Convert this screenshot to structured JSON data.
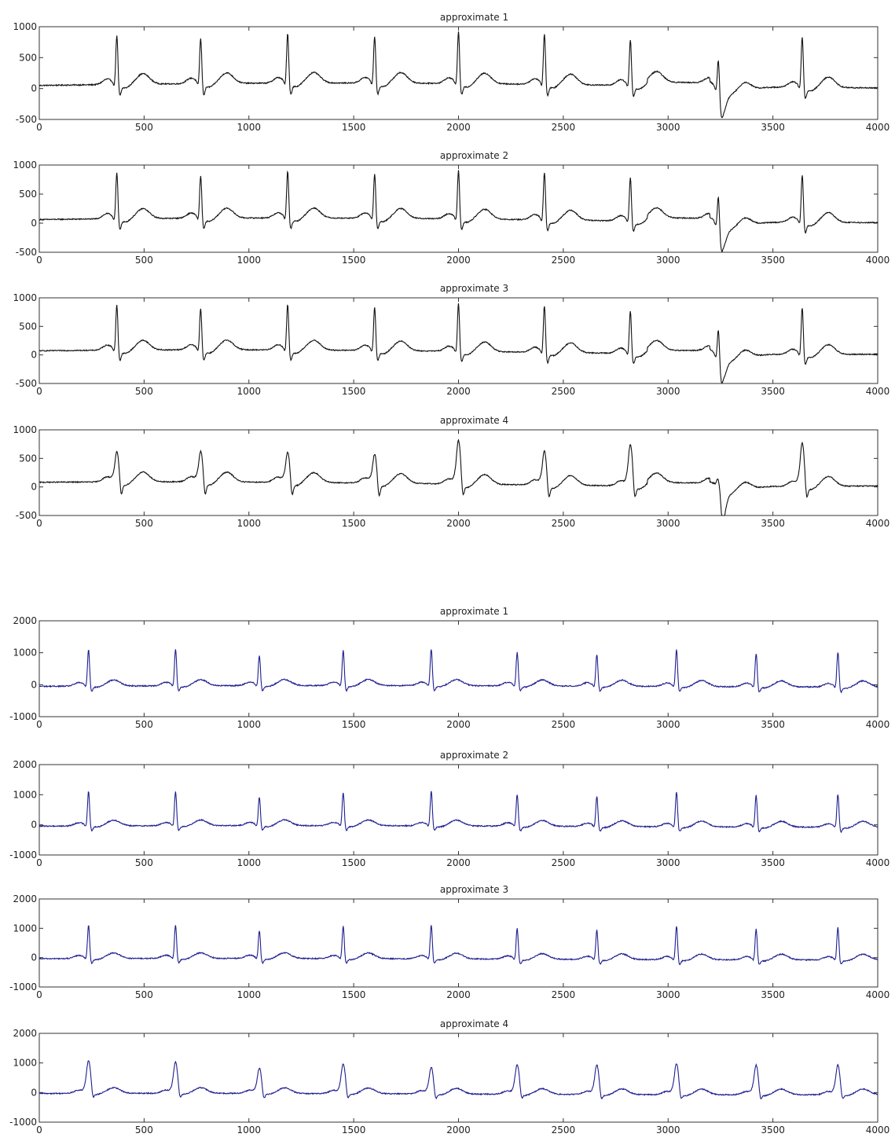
{
  "figure_groups": [
    {
      "name": "black-figure",
      "line_color": "#111111",
      "panels": [
        {
          "title": "approximate  1",
          "variant": 1
        },
        {
          "title": "approximate 2",
          "variant": 2
        },
        {
          "title": "approximate  3",
          "variant": 3
        },
        {
          "title": "approximate 4",
          "variant": 4
        }
      ]
    },
    {
      "name": "blue-figure",
      "line_color": "#1f1f8f",
      "panels": [
        {
          "title": "approximate  1",
          "variant": 1
        },
        {
          "title": "approximate 2",
          "variant": 2
        },
        {
          "title": "approximate  3",
          "variant": 3
        },
        {
          "title": "approximate 4",
          "variant": 4
        }
      ]
    }
  ],
  "chart_data": [
    {
      "type": "line",
      "title": "approximate  1",
      "xlim": [
        0,
        4000
      ],
      "ylim": [
        -500,
        1000
      ],
      "xticks": [
        "0",
        "500",
        "1000",
        "1500",
        "2000",
        "2500",
        "3000",
        "3500",
        "4000"
      ],
      "yticks": [
        "-500",
        "0",
        "500",
        "1000"
      ],
      "series": [
        {
          "r_peaks": [
            {
              "x": 370,
              "y": 850
            },
            {
              "x": 770,
              "y": 790
            },
            {
              "x": 1185,
              "y": 860
            },
            {
              "x": 1600,
              "y": 820
            },
            {
              "x": 2000,
              "y": 900
            },
            {
              "x": 2410,
              "y": 880
            },
            {
              "x": 2820,
              "y": 800
            },
            {
              "x": 3240,
              "y": 600
            },
            {
              "x": 3640,
              "y": 880
            }
          ],
          "baseline": 50,
          "trough_at_3260": -400
        }
      ]
    },
    {
      "type": "line",
      "title": "approximate 2",
      "xlim": [
        0,
        4000
      ],
      "ylim": [
        -500,
        1000
      ],
      "xticks": [
        "0",
        "500",
        "1000",
        "1500",
        "2000",
        "2500",
        "3000",
        "3500",
        "4000"
      ],
      "yticks": [
        "-500",
        "0",
        "500",
        "1000"
      ],
      "series": [
        {
          "r_peaks": [
            {
              "x": 370,
              "y": 850
            },
            {
              "x": 770,
              "y": 790
            },
            {
              "x": 1185,
              "y": 860
            },
            {
              "x": 1600,
              "y": 820
            },
            {
              "x": 2000,
              "y": 900
            },
            {
              "x": 2410,
              "y": 880
            },
            {
              "x": 2820,
              "y": 800
            },
            {
              "x": 3240,
              "y": 600
            },
            {
              "x": 3640,
              "y": 880
            }
          ],
          "baseline": 50,
          "trough_at_3260": -400
        }
      ]
    },
    {
      "type": "line",
      "title": "approximate  3",
      "xlim": [
        0,
        4000
      ],
      "ylim": [
        -500,
        1000
      ],
      "xticks": [
        "0",
        "500",
        "1000",
        "1500",
        "2000",
        "2500",
        "3000",
        "3500",
        "4000"
      ],
      "yticks": [
        "-500",
        "0",
        "500",
        "1000"
      ],
      "series": [
        {
          "r_peaks": [
            {
              "x": 370,
              "y": 850
            },
            {
              "x": 770,
              "y": 790
            },
            {
              "x": 1185,
              "y": 860
            },
            {
              "x": 1600,
              "y": 820
            },
            {
              "x": 2000,
              "y": 900
            },
            {
              "x": 2410,
              "y": 880
            },
            {
              "x": 2820,
              "y": 800
            },
            {
              "x": 3240,
              "y": 600
            },
            {
              "x": 3640,
              "y": 880
            }
          ],
          "baseline": 50,
          "trough_at_3260": -400
        }
      ]
    },
    {
      "type": "line",
      "title": "approximate 4",
      "xlim": [
        0,
        4000
      ],
      "ylim": [
        -500,
        1000
      ],
      "xticks": [
        "0",
        "500",
        "1000",
        "1500",
        "2000",
        "2500",
        "3000",
        "3500",
        "4000"
      ],
      "yticks": [
        "-500",
        "0",
        "500",
        "1000"
      ],
      "series": [
        {
          "r_peaks": [
            {
              "x": 370,
              "y": 580
            },
            {
              "x": 770,
              "y": 590
            },
            {
              "x": 1185,
              "y": 580
            },
            {
              "x": 1600,
              "y": 560
            },
            {
              "x": 2000,
              "y": 820
            },
            {
              "x": 2410,
              "y": 650
            },
            {
              "x": 2820,
              "y": 780
            },
            {
              "x": 3240,
              "y": 310
            },
            {
              "x": 3640,
              "y": 810
            }
          ],
          "baseline": 50,
          "trough_at_3260": -500
        }
      ]
    },
    {
      "type": "line",
      "title": "approximate  1",
      "xlim": [
        0,
        4000
      ],
      "ylim": [
        -1000,
        2000
      ],
      "xticks": [
        "0",
        "500",
        "1000",
        "1500",
        "2000",
        "2500",
        "3000",
        "3500",
        "4000"
      ],
      "yticks": [
        "-1000",
        "0",
        "1000",
        "2000"
      ],
      "series": [
        {
          "r_peaks": [
            {
              "x": 235,
              "y": 1100
            },
            {
              "x": 650,
              "y": 1100
            },
            {
              "x": 1050,
              "y": 900
            },
            {
              "x": 1450,
              "y": 1050
            },
            {
              "x": 1870,
              "y": 1100
            },
            {
              "x": 2280,
              "y": 1000
            },
            {
              "x": 2660,
              "y": 950
            },
            {
              "x": 3040,
              "y": 1100
            },
            {
              "x": 3420,
              "y": 1000
            },
            {
              "x": 3810,
              "y": 1050
            }
          ],
          "baseline": -50
        }
      ]
    },
    {
      "type": "line",
      "title": "approximate 2",
      "xlim": [
        0,
        4000
      ],
      "ylim": [
        -1000,
        2000
      ],
      "xticks": [
        "0",
        "500",
        "1000",
        "1500",
        "2000",
        "2500",
        "3000",
        "3500",
        "4000"
      ],
      "yticks": [
        "-1000",
        "0",
        "1000",
        "2000"
      ],
      "series": [
        {
          "r_peaks": [
            {
              "x": 235,
              "y": 1100
            },
            {
              "x": 650,
              "y": 1100
            },
            {
              "x": 1050,
              "y": 900
            },
            {
              "x": 1450,
              "y": 1050
            },
            {
              "x": 1870,
              "y": 1100
            },
            {
              "x": 2280,
              "y": 1000
            },
            {
              "x": 2660,
              "y": 950
            },
            {
              "x": 3040,
              "y": 1100
            },
            {
              "x": 3420,
              "y": 1000
            },
            {
              "x": 3810,
              "y": 1050
            }
          ],
          "baseline": -50
        }
      ]
    },
    {
      "type": "line",
      "title": "approximate  3",
      "xlim": [
        0,
        4000
      ],
      "ylim": [
        -1000,
        2000
      ],
      "xticks": [
        "0",
        "500",
        "1000",
        "1500",
        "2000",
        "2500",
        "3000",
        "3500",
        "4000"
      ],
      "yticks": [
        "-1000",
        "0",
        "1000",
        "2000"
      ],
      "series": [
        {
          "r_peaks": [
            {
              "x": 235,
              "y": 1100
            },
            {
              "x": 650,
              "y": 1100
            },
            {
              "x": 1050,
              "y": 900
            },
            {
              "x": 1450,
              "y": 1050
            },
            {
              "x": 1870,
              "y": 1100
            },
            {
              "x": 2280,
              "y": 1000
            },
            {
              "x": 2660,
              "y": 950
            },
            {
              "x": 3040,
              "y": 1100
            },
            {
              "x": 3420,
              "y": 1000
            },
            {
              "x": 3810,
              "y": 1050
            }
          ],
          "baseline": -50
        }
      ]
    },
    {
      "type": "line",
      "title": "approximate 4",
      "xlim": [
        0,
        4000
      ],
      "ylim": [
        -1000,
        2000
      ],
      "xticks": [
        "0",
        "500",
        "1000",
        "1500",
        "2000",
        "2500",
        "3000",
        "3500",
        "4000"
      ],
      "yticks": [
        "-1000",
        "0",
        "1000",
        "2000"
      ],
      "series": [
        {
          "r_peaks": [
            {
              "x": 235,
              "y": 1050
            },
            {
              "x": 650,
              "y": 1000
            },
            {
              "x": 1050,
              "y": 800
            },
            {
              "x": 1450,
              "y": 950
            },
            {
              "x": 1870,
              "y": 850
            },
            {
              "x": 2280,
              "y": 950
            },
            {
              "x": 2660,
              "y": 950
            },
            {
              "x": 3040,
              "y": 1000
            },
            {
              "x": 3420,
              "y": 950
            },
            {
              "x": 3810,
              "y": 950
            }
          ],
          "baseline": -50
        }
      ]
    }
  ]
}
